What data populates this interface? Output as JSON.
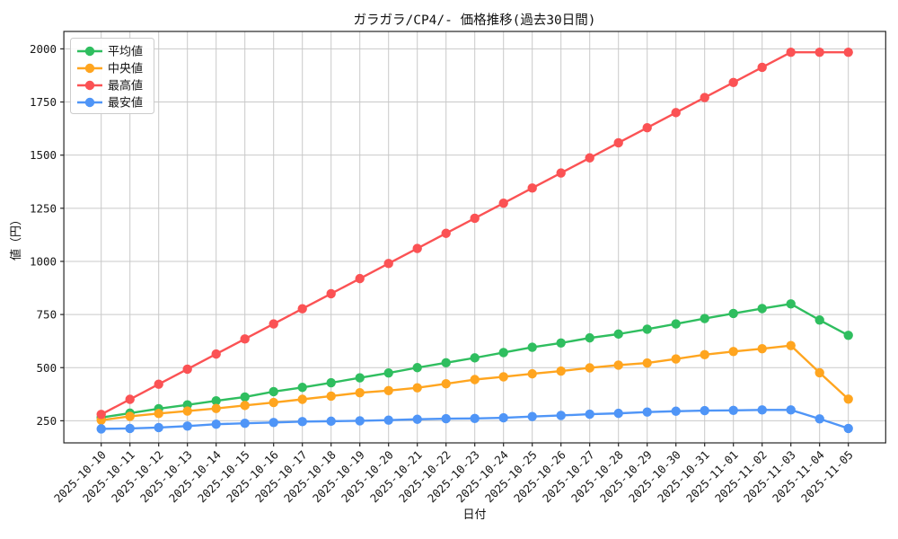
{
  "chart_data": {
    "type": "line",
    "title": "ガラガラ/CP4/- 価格推移(過去30日間)",
    "xlabel": "日付",
    "ylabel": "値（円）",
    "x": [
      "2025-10-10",
      "2025-10-11",
      "2025-10-12",
      "2025-10-13",
      "2025-10-14",
      "2025-10-15",
      "2025-10-16",
      "2025-10-17",
      "2025-10-18",
      "2025-10-19",
      "2025-10-20",
      "2025-10-21",
      "2025-10-22",
      "2025-10-23",
      "2025-10-24",
      "2025-10-25",
      "2025-10-26",
      "2025-10-27",
      "2025-10-28",
      "2025-10-29",
      "2025-10-30",
      "2025-10-31",
      "2025-11-01",
      "2025-11-02",
      "2025-11-03",
      "2025-11-04",
      "2025-11-05"
    ],
    "series": [
      {
        "name": "平均値",
        "color": "#2FBE5F",
        "values": [
          265,
          286,
          307,
          325,
          344,
          362,
          387,
          407,
          429,
          452,
          475,
          500,
          523,
          546,
          571,
          596,
          616,
          640,
          658,
          681,
          706,
          731,
          755,
          778,
          800,
          724,
          652
        ]
      },
      {
        "name": "中央値",
        "color": "#FFA51F",
        "values": [
          253,
          271,
          284,
          296,
          308,
          322,
          336,
          351,
          366,
          382,
          392,
          405,
          424,
          444,
          457,
          471,
          484,
          499,
          512,
          522,
          541,
          561,
          576,
          589,
          604,
          476,
          352
        ]
      },
      {
        "name": "最高値",
        "color": "#FB5254",
        "values": [
          280,
          351,
          422,
          493,
          564,
          635,
          706,
          777,
          848,
          919,
          990,
          1061,
          1132,
          1203,
          1274,
          1345,
          1416,
          1487,
          1558,
          1629,
          1700,
          1771,
          1842,
          1913,
          1984,
          1984,
          1984
        ]
      },
      {
        "name": "最安値",
        "color": "#4F95F7",
        "values": [
          212,
          214,
          218,
          225,
          234,
          238,
          242,
          246,
          248,
          250,
          253,
          257,
          260,
          261,
          264,
          270,
          275,
          281,
          285,
          291,
          295,
          298,
          299,
          301,
          301,
          259,
          214
        ]
      }
    ],
    "yticks": [
      250,
      500,
      750,
      1000,
      1250,
      1500,
      1750,
      2000
    ],
    "ylim": [
      146,
      2082
    ],
    "grid": true,
    "legend_position": "upper-left",
    "colors": {
      "grid": "#C9C9C9",
      "spine": "#262626",
      "legend_border": "#CCCCCC",
      "background": "#FFFFFF"
    }
  }
}
